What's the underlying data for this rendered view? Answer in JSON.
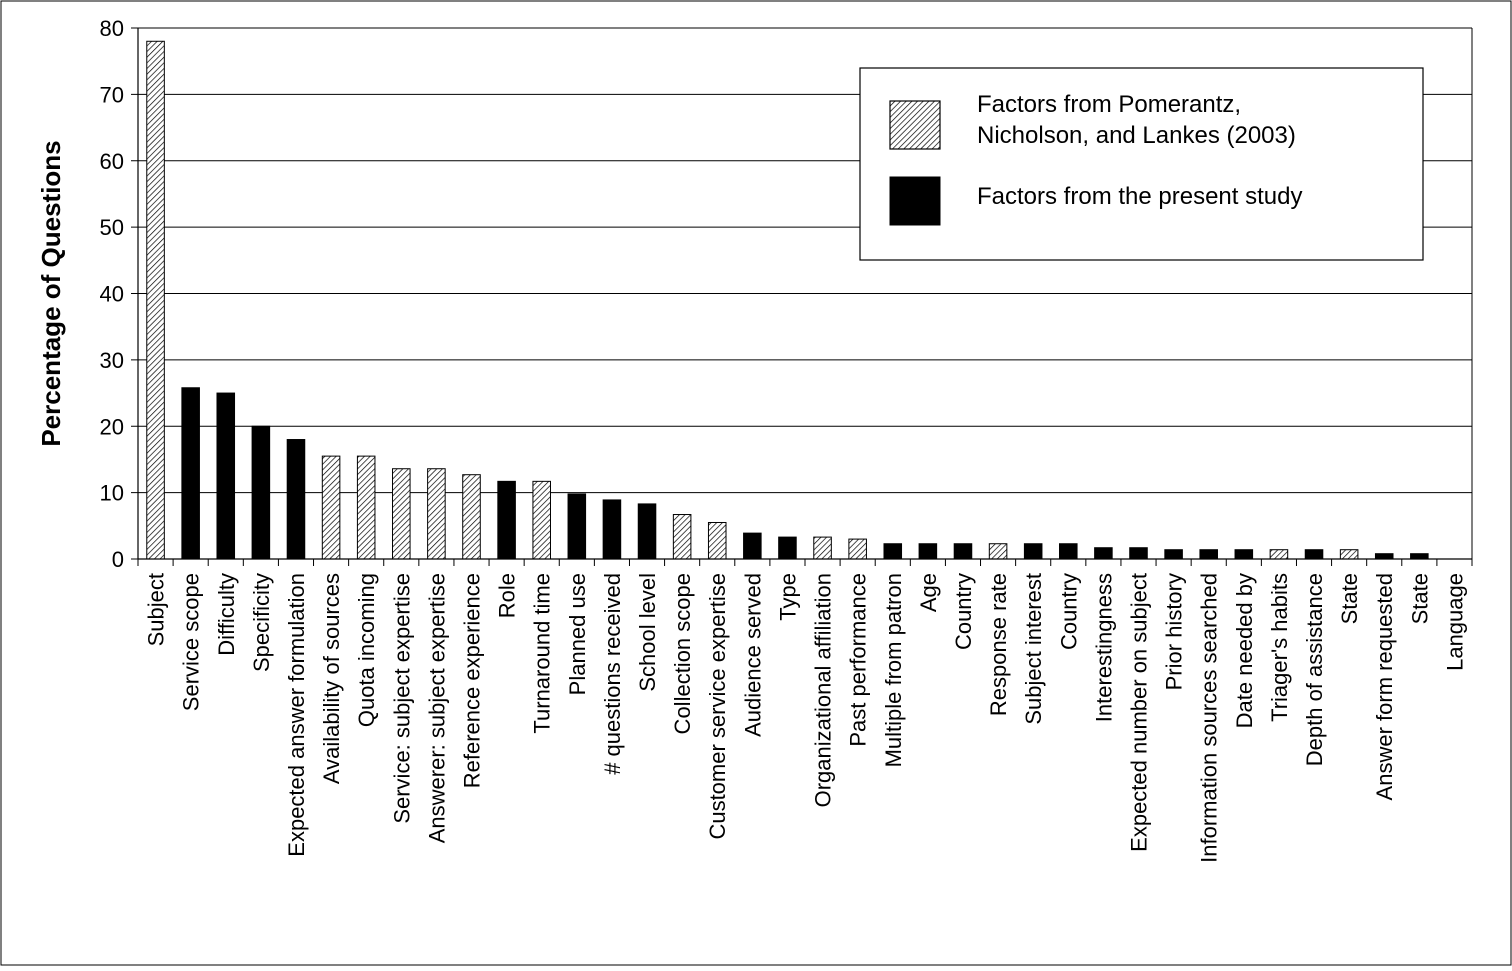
{
  "chart_data": {
    "type": "bar",
    "ylabel": "Percentage of Questions",
    "xlabel": "",
    "ylim": [
      0,
      80
    ],
    "yticks": [
      0,
      10,
      20,
      30,
      40,
      50,
      60,
      70,
      80
    ],
    "grid": true,
    "legend_position": "top-right",
    "categories": [
      "Subject",
      "Service scope",
      "Difficulty",
      "Specificity",
      "Expected answer formulation",
      "Availability of sources",
      "Quota incoming",
      "Service: subject expertise",
      "Answerer: subject expertise",
      "Reference experience",
      "Role",
      "Turnaround time",
      "Planned use",
      "# questions received",
      "School level",
      "Collection scope",
      "Customer service expertise",
      "Audience served",
      "Type",
      "Organizational affiliation",
      "Past performance",
      "Multiple from patron",
      "Age",
      "Country",
      "Response rate",
      "Subject interest",
      "Country",
      "Interestingness",
      "Expected number on subject",
      "Prior history",
      "Information sources searched",
      "Date needed by",
      "Triager's habits",
      "Depth of assistance",
      "State",
      "Answer form requested",
      "State",
      "Language"
    ],
    "values": [
      78,
      25.8,
      25,
      20,
      18,
      15.5,
      15.5,
      13.6,
      13.6,
      12.7,
      11.7,
      11.7,
      9.8,
      8.9,
      8.3,
      6.7,
      5.5,
      3.9,
      3.3,
      3.3,
      3,
      2.3,
      2.3,
      2.3,
      2.3,
      2.3,
      2.3,
      1.7,
      1.7,
      1.4,
      1.4,
      1.4,
      1.4,
      1.4,
      1.4,
      0.8,
      0.8,
      0
    ],
    "groups": [
      "P",
      "N",
      "N",
      "N",
      "N",
      "P",
      "P",
      "P",
      "P",
      "P",
      "N",
      "P",
      "N",
      "N",
      "N",
      "P",
      "P",
      "N",
      "N",
      "P",
      "P",
      "N",
      "N",
      "N",
      "P",
      "N",
      "N",
      "N",
      "N",
      "N",
      "N",
      "N",
      "P",
      "N",
      "P",
      "N",
      "N",
      "P"
    ],
    "legend": [
      {
        "key": "P",
        "label_lines": [
          "Factors from Pomerantz,",
          "Nicholson, and Lankes (2003)"
        ],
        "style": "hatched"
      },
      {
        "key": "N",
        "label_lines": [
          "Factors from the present study"
        ],
        "style": "solid"
      }
    ],
    "colors": {
      "solid": "#000000",
      "hatch": "#000000",
      "gridline": "#000000"
    }
  }
}
